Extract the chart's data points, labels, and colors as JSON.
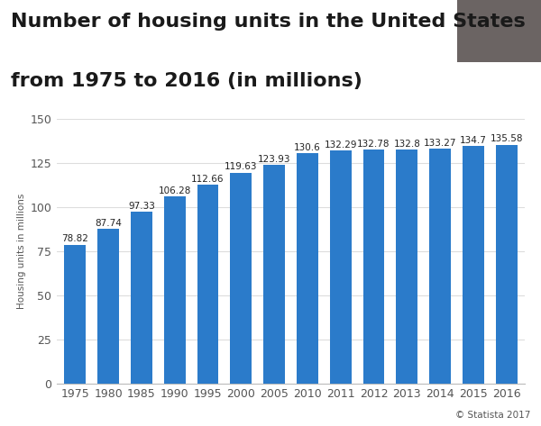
{
  "title_line1": "Number of housing units in the United States",
  "title_line2": "from 1975 to 2016 (in millions)",
  "ylabel": "Housing units in millions",
  "categories": [
    "1975",
    "1980",
    "1985",
    "1990",
    "1995",
    "2000",
    "2005",
    "2010",
    "2011",
    "2012",
    "2013",
    "2014",
    "2015",
    "2016"
  ],
  "values": [
    78.82,
    87.74,
    97.33,
    106.28,
    112.66,
    119.63,
    123.93,
    130.6,
    132.29,
    132.78,
    132.8,
    133.27,
    134.7,
    135.58
  ],
  "bar_color": "#2b7bca",
  "ylim": [
    0,
    150
  ],
  "yticks": [
    0,
    25,
    50,
    75,
    100,
    125,
    150
  ],
  "background_color": "#ffffff",
  "plot_bg_color": "#ffffff",
  "title_fontsize": 16,
  "label_fontsize": 7.5,
  "ylabel_fontsize": 7.5,
  "tick_fontsize": 9,
  "footer_text": "© Statista 2017",
  "gray_box_color": "#6b6463",
  "bar_width": 0.65,
  "grid_color": "#dddddd"
}
